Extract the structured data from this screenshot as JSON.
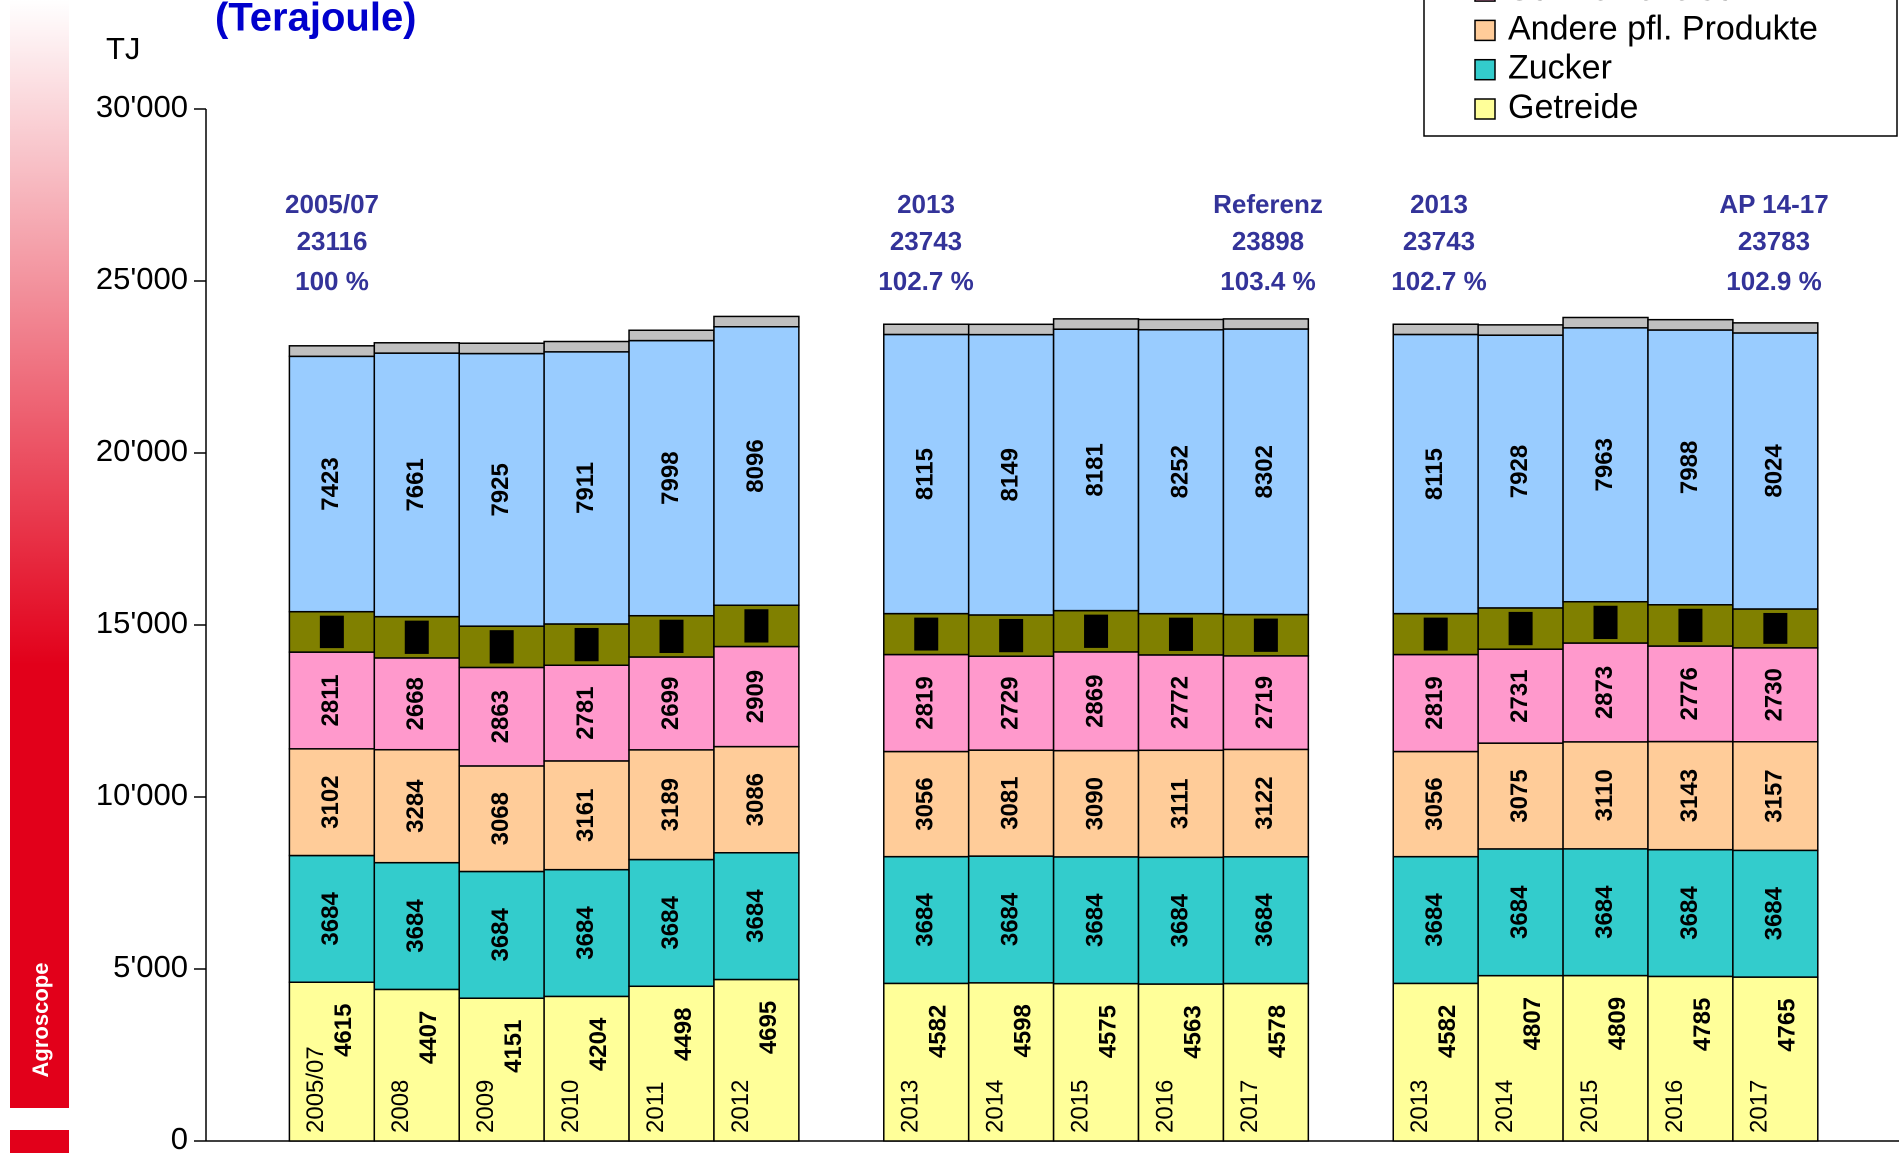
{
  "branding": "Agroscope",
  "chart_data": {
    "type": "stacked-bar",
    "title": "(Terajoule)",
    "y_label": "TJ",
    "categories": [
      "2005/07",
      "2008",
      "2009",
      "2010",
      "2011",
      "2012",
      null,
      "2013",
      "2014",
      "2015",
      "2016",
      "2017",
      null,
      "2013",
      "2014",
      "2015",
      "2016",
      "2017"
    ],
    "series": [
      {
        "name": "Getreide",
        "color": "#FFFF99",
        "labels": true,
        "values": [
          4615,
          4407,
          4151,
          4204,
          4498,
          4695,
          null,
          4582,
          4598,
          4575,
          4563,
          4578,
          null,
          4582,
          4807,
          4809,
          4785,
          4765
        ]
      },
      {
        "name": "Zucker",
        "color": "#33CCCC",
        "labels": true,
        "values": [
          3684,
          3684,
          3684,
          3684,
          3684,
          3684,
          null,
          3684,
          3684,
          3684,
          3684,
          3684,
          null,
          3684,
          3684,
          3684,
          3684,
          3684
        ]
      },
      {
        "name": "Andere pfl. Produkte",
        "color": "#FFCC99",
        "labels": true,
        "values": [
          3102,
          3284,
          3068,
          3161,
          3189,
          3086,
          null,
          3056,
          3081,
          3090,
          3111,
          3122,
          null,
          3056,
          3075,
          3110,
          3143,
          3157
        ]
      },
      {
        "name": "Schweinefleisch",
        "color": "#FF99CC",
        "labels": true,
        "values": [
          2811,
          2668,
          2863,
          2781,
          2699,
          2909,
          null,
          2819,
          2729,
          2869,
          2772,
          2719,
          null,
          2819,
          2731,
          2873,
          2776,
          2730
        ]
      },
      {
        "color": "#808000",
        "labels": false,
        "values": [
          1175,
          1200,
          1200,
          1200,
          1200,
          1200,
          null,
          1190,
          1200,
          1200,
          1200,
          1200,
          null,
          1190,
          1200,
          1200,
          1200,
          1130
        ]
      },
      {
        "color": "#99CCFF",
        "labels": true,
        "values": [
          7423,
          7661,
          7925,
          7911,
          7998,
          8096,
          null,
          8115,
          8149,
          8181,
          8252,
          8302,
          null,
          8115,
          7928,
          7963,
          7988,
          8024
        ]
      },
      {
        "color": "#C0C0C0",
        "labels": false,
        "values": [
          306,
          300,
          300,
          300,
          300,
          300,
          null,
          297,
          300,
          300,
          300,
          293,
          null,
          297,
          300,
          300,
          300,
          293
        ]
      }
    ],
    "ylim": [
      0,
      30000
    ],
    "yticks": [
      0,
      {
        "value": 5000,
        "label": "5'000"
      },
      {
        "value": 10000,
        "label": "10'000"
      },
      {
        "value": 15000,
        "label": "15'000"
      },
      {
        "value": 20000,
        "label": "20'000"
      },
      {
        "value": 25000,
        "label": "25'000"
      },
      {
        "value": 30000,
        "label": "30'000"
      }
    ],
    "annotations": [
      {
        "lines": [
          "2005/07",
          "23116",
          "100 %"
        ]
      },
      {
        "lines": [
          "2013",
          "23743",
          "102.7 %"
        ]
      },
      {
        "lines": [
          "Referenz",
          "23898",
          "103.4 %"
        ]
      },
      {
        "lines": [
          "2013",
          "23743",
          "102.7 %"
        ]
      },
      {
        "lines": [
          "AP 14-17",
          "23783",
          "102.9 %"
        ]
      }
    ]
  }
}
